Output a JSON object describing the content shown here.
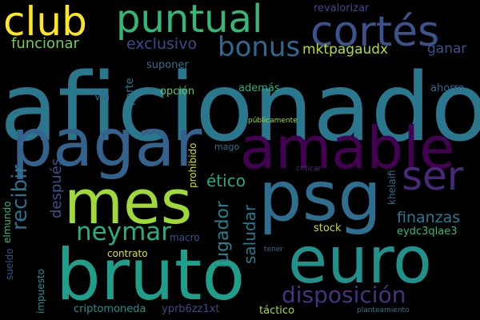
{
  "wordcloud": {
    "background": "#000000",
    "words": [
      {
        "text": "aficionado",
        "color": "#2a788e",
        "orientation": "horizontal"
      },
      {
        "text": "pagar",
        "color": "#33638d",
        "orientation": "horizontal"
      },
      {
        "text": "amable",
        "color": "#440154",
        "orientation": "horizontal"
      },
      {
        "text": "mes",
        "color": "#a0da39",
        "orientation": "horizontal"
      },
      {
        "text": "psg",
        "color": "#2e6e8e",
        "orientation": "horizontal"
      },
      {
        "text": "euro",
        "color": "#21918c",
        "orientation": "horizontal"
      },
      {
        "text": "bruto",
        "color": "#1f9e89",
        "orientation": "horizontal"
      },
      {
        "text": "club",
        "color": "#fde725",
        "orientation": "horizontal"
      },
      {
        "text": "puntual",
        "color": "#35b779",
        "orientation": "horizontal"
      },
      {
        "text": "cortés",
        "color": "#3b528b",
        "orientation": "horizontal"
      },
      {
        "text": "ser",
        "color": "#482878",
        "orientation": "horizontal"
      },
      {
        "text": "bonus",
        "color": "#31688e",
        "orientation": "horizontal"
      },
      {
        "text": "neymar",
        "color": "#29af7f",
        "orientation": "horizontal"
      },
      {
        "text": "disposición",
        "color": "#46337e",
        "orientation": "horizontal"
      },
      {
        "text": "exclusivo",
        "color": "#3e4a89",
        "orientation": "horizontal"
      },
      {
        "text": "funcionar",
        "color": "#6ece58",
        "orientation": "horizontal"
      },
      {
        "text": "mktpagaudx",
        "color": "#b5de2b",
        "orientation": "horizontal"
      },
      {
        "text": "ganar",
        "color": "#3b528b",
        "orientation": "horizontal"
      },
      {
        "text": "finanzas",
        "color": "#2a788e",
        "orientation": "horizontal"
      },
      {
        "text": "ético",
        "color": "#22a884",
        "orientation": "horizontal"
      },
      {
        "text": "revalorizar",
        "color": "#3e4a89",
        "orientation": "horizontal"
      },
      {
        "text": "suponer",
        "color": "#2c728e",
        "orientation": "horizontal"
      },
      {
        "text": "además",
        "color": "#28ae80",
        "orientation": "horizontal"
      },
      {
        "text": "ahorro",
        "color": "#31688e",
        "orientation": "horizontal"
      },
      {
        "text": "vía",
        "color": "#35608d",
        "orientation": "horizontal"
      },
      {
        "text": "opción",
        "color": "#5ec962",
        "orientation": "horizontal"
      },
      {
        "text": "públicamente",
        "color": "#a0da39",
        "orientation": "horizontal"
      },
      {
        "text": "mago",
        "color": "#2c728e",
        "orientation": "horizontal"
      },
      {
        "text": "criticar",
        "color": "#46337e",
        "orientation": "horizontal"
      },
      {
        "text": "stock",
        "color": "#c2df23",
        "orientation": "horizontal"
      },
      {
        "text": "eydc3qlae3",
        "color": "#35b779",
        "orientation": "horizontal"
      },
      {
        "text": "macro",
        "color": "#3b528b",
        "orientation": "horizontal"
      },
      {
        "text": "contrato",
        "color": "#d8e219",
        "orientation": "horizontal"
      },
      {
        "text": "tener",
        "color": "#31688e",
        "orientation": "horizontal"
      },
      {
        "text": "criptomoneda",
        "color": "#21918c",
        "orientation": "horizontal"
      },
      {
        "text": "yprb6zz1xt",
        "color": "#3e4a89",
        "orientation": "horizontal"
      },
      {
        "text": "táctico",
        "color": "#a5db36",
        "orientation": "horizontal"
      },
      {
        "text": "planteamiento",
        "color": "#2a788e",
        "orientation": "horizontal"
      },
      {
        "text": "recibir",
        "color": "#2c728e",
        "orientation": "vertical"
      },
      {
        "text": "después",
        "color": "#3b528b",
        "orientation": "vertical"
      },
      {
        "text": "jugador",
        "color": "#277f8e",
        "orientation": "vertical"
      },
      {
        "text": "saludar",
        "color": "#2a788e",
        "orientation": "vertical"
      },
      {
        "text": "parte",
        "color": "#2a788e",
        "orientation": "vertical"
      },
      {
        "text": "prohibido",
        "color": "#d8e219",
        "orientation": "vertical"
      },
      {
        "text": "khelaifi",
        "color": "#2e6e8e",
        "orientation": "vertical"
      },
      {
        "text": "elmundo",
        "color": "#35b779",
        "orientation": "vertical"
      },
      {
        "text": "sueldo",
        "color": "#3b528b",
        "orientation": "vertical"
      },
      {
        "text": "impuesto",
        "color": "#21918c",
        "orientation": "vertical"
      }
    ]
  }
}
